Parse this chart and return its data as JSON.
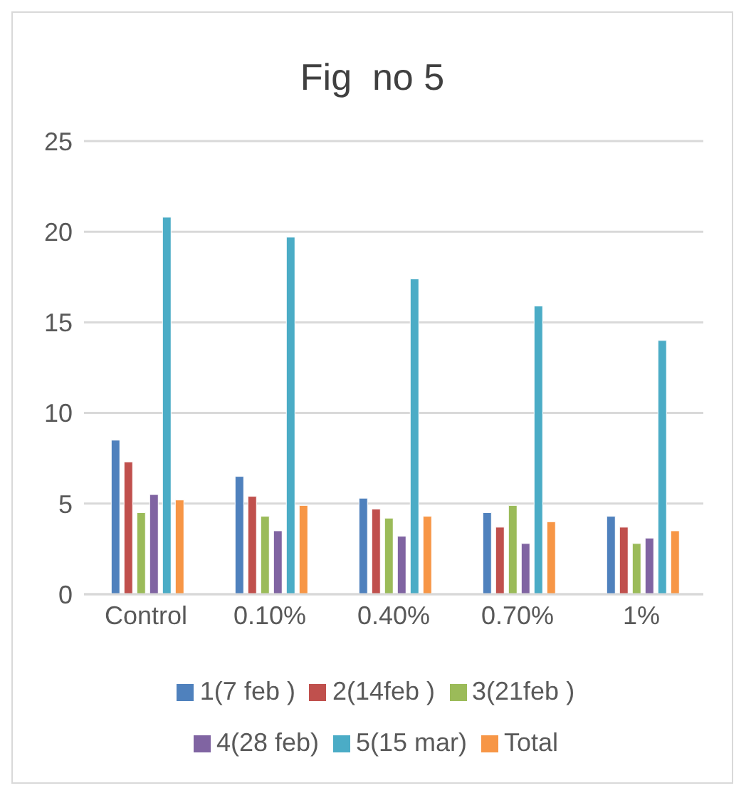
{
  "chart_data": {
    "type": "bar",
    "title": "Fig  no 5",
    "categories": [
      "Control",
      "0.10%",
      "0.40%",
      "0.70%",
      "1%"
    ],
    "series": [
      {
        "name": "1(7 feb )",
        "color": "#4f81bd",
        "values": [
          8.5,
          6.5,
          5.3,
          4.5,
          4.3
        ]
      },
      {
        "name": "2(14feb )",
        "color": "#c0504d",
        "values": [
          7.3,
          5.4,
          4.7,
          3.7,
          3.7
        ]
      },
      {
        "name": "3(21feb )",
        "color": "#9bbb59",
        "values": [
          4.5,
          4.3,
          4.2,
          4.9,
          2.8
        ]
      },
      {
        "name": "4(28 feb)",
        "color": "#8064a2",
        "values": [
          5.5,
          3.5,
          3.2,
          2.8,
          3.1
        ]
      },
      {
        "name": "5(15 mar)",
        "color": "#4bacc6",
        "values": [
          20.8,
          19.7,
          17.4,
          15.9,
          14.0
        ]
      },
      {
        "name": "Total",
        "color": "#f79646",
        "values": [
          5.2,
          4.9,
          4.3,
          4.0,
          3.5
        ]
      }
    ],
    "ylim": [
      0,
      25
    ],
    "yticks": [
      0,
      5,
      10,
      15,
      20,
      25
    ],
    "grid": "y",
    "legend": "bottom"
  }
}
